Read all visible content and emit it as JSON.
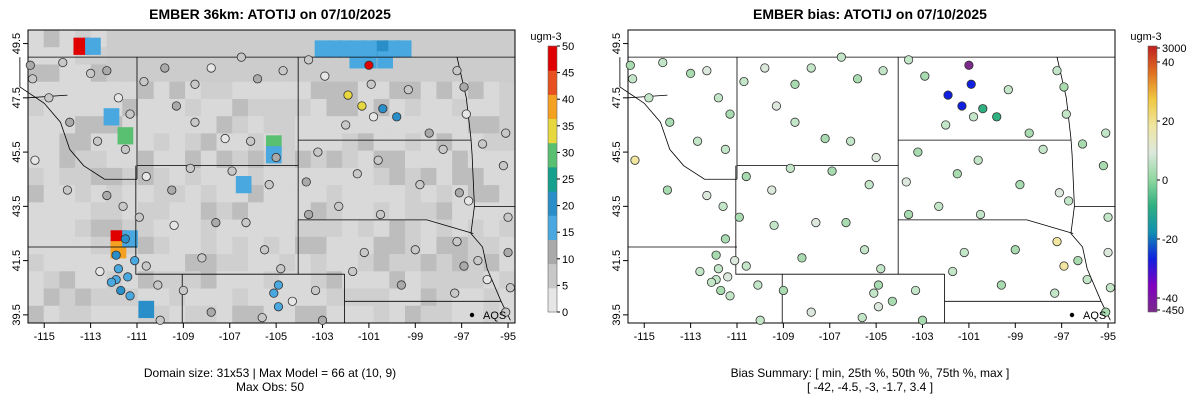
{
  "left": {
    "title": "EMBER 36km: ATOTIJ on 07/10/2025",
    "unit": "ugm-3",
    "x_ticks": [
      "-115",
      "-113",
      "-111",
      "-109",
      "-107",
      "-105",
      "-103",
      "-101",
      "-99",
      "-97",
      "-95"
    ],
    "y_ticks": [
      "39.5",
      "41.5",
      "43.5",
      "45.5",
      "47.5",
      "49.5"
    ],
    "colorbar_ticks": [
      "50",
      "45",
      "40",
      "35",
      "30",
      "25",
      "20",
      "15",
      "10",
      "5",
      "0"
    ],
    "site_label": "AQS",
    "caption_line1": "Domain size: 31x53 | Max Model = 66 at (10, 9)",
    "caption_line2": "Max Obs: 50"
  },
  "right": {
    "title": "EMBER bias: ATOTIJ on 07/10/2025",
    "unit": "ugm-3",
    "x_ticks": [
      "-115",
      "-113",
      "-111",
      "-109",
      "-107",
      "-105",
      "-103",
      "-101",
      "-99",
      "-97",
      "-95"
    ],
    "y_ticks": [
      "39.5",
      "41.5",
      "43.5",
      "45.5",
      "47.5",
      "49.5"
    ],
    "colorbar_ticks": [
      "3000",
      "40",
      "20",
      "0",
      "-20",
      "-40",
      "-450"
    ],
    "site_label": "AQS",
    "caption_line1": "Bias Summary: [ min, 25th %, 50th %, 75th %, max ]",
    "caption_line2": "[ -42,   -4.5,   -3,   -1.7,   3.4 ]"
  },
  "colors": {
    "concentration_scale": [
      "#e6e6e6",
      "#c8c8c8",
      "#aaaaaa",
      "#4aa8e0",
      "#2a8fc8",
      "#14a08c",
      "#58c070",
      "#e8d840",
      "#f4a020",
      "#e85020",
      "#e00000"
    ],
    "bias_scale": [
      "#7a2a8a",
      "#8000c0",
      "#1020e0",
      "#1090b0",
      "#30b080",
      "#90d8a0",
      "#dde8dd",
      "#f0e6a0",
      "#f0c840",
      "#e07020",
      "#c02020"
    ]
  }
}
